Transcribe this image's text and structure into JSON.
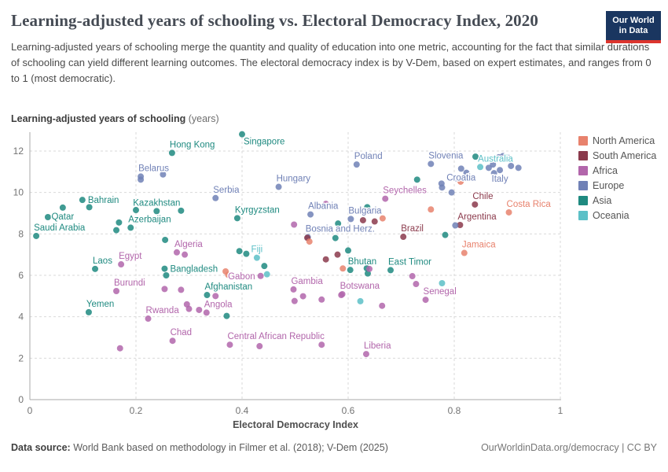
{
  "header": {
    "title": "Learning-adjusted years of schooling vs. Electoral Democracy Index, 2020",
    "subtitle": "Learning-adjusted years of schooling merge the quantity and quality of education into one metric, accounting for the fact that similar durations of schooling can yield different learning outcomes. The electoral democracy index is by V-Dem, based on expert estimates, and ranges from 0 to 1 (most democratic).",
    "logo": {
      "line1": "Our World",
      "line2": "in Data",
      "bg_color": "#1a3660",
      "bar_color": "#dc352e"
    }
  },
  "chart_data": {
    "type": "scatter",
    "title": "Learning-adjusted years of schooling vs. Electoral Democracy Index, 2020",
    "xlabel": "Electoral Democracy Index",
    "ylabel_bold": "Learning-adjusted years of schooling",
    "ylabel_unit": " (years)",
    "xlim": [
      0,
      1
    ],
    "ylim": [
      0,
      13
    ],
    "x_ticks": [
      "0",
      "0.2",
      "0.4",
      "0.6",
      "0.8",
      "1"
    ],
    "y_ticks": [
      "0",
      "2",
      "4",
      "6",
      "8",
      "10",
      "12"
    ],
    "grid": "dashed",
    "legend_position": "right",
    "legend": [
      {
        "label": "North America",
        "color": "#e8826d"
      },
      {
        "label": "South America",
        "color": "#8b3a4c"
      },
      {
        "label": "Africa",
        "color": "#b266ab"
      },
      {
        "label": "Europe",
        "color": "#7081b6"
      },
      {
        "label": "Asia",
        "color": "#1f8a80"
      },
      {
        "label": "Oceania",
        "color": "#5cc0c7"
      }
    ],
    "continent_colors": {
      "North America": "#e8826d",
      "South America": "#8b3a4c",
      "Africa": "#b266ab",
      "Europe": "#7081b6",
      "Asia": "#1f8a80",
      "Oceania": "#5cc0c7"
    },
    "points": [
      {
        "name": "Saudi Arabia",
        "x": 0.012,
        "y": 7.9,
        "continent": "Asia",
        "label_pos": "above-right"
      },
      {
        "name": "Qatar",
        "x": 0.062,
        "y": 9.27,
        "continent": "Asia",
        "label_pos": "below"
      },
      {
        "name": "Bahrain",
        "x": 0.099,
        "y": 9.64,
        "continent": "Asia",
        "label_pos": "right"
      },
      {
        "name": "Yemen",
        "x": 0.111,
        "y": 4.22,
        "continent": "Asia",
        "label_pos": "above-right"
      },
      {
        "name": "Laos",
        "x": 0.123,
        "y": 6.31,
        "continent": "Asia",
        "label_pos": "above-right"
      },
      {
        "name": "Burundi",
        "x": 0.163,
        "y": 5.24,
        "continent": "Africa",
        "label_pos": "above-right"
      },
      {
        "name": "Egypt",
        "x": 0.172,
        "y": 6.53,
        "continent": "Africa",
        "label_pos": "above-right"
      },
      {
        "name": "Azerbaijan",
        "x": 0.19,
        "y": 8.3,
        "continent": "Asia",
        "label_pos": "above-right"
      },
      {
        "name": "Belarus",
        "x": 0.209,
        "y": 10.77,
        "continent": "Europe",
        "label_pos": "above-right"
      },
      {
        "name": "Kazakhstan",
        "x": 0.239,
        "y": 9.1,
        "continent": "Asia",
        "label_pos": "above"
      },
      {
        "name": "Rwanda",
        "x": 0.223,
        "y": 3.91,
        "continent": "Africa",
        "label_pos": "above-right"
      },
      {
        "name": "Hong Kong",
        "x": 0.268,
        "y": 11.91,
        "continent": "Asia",
        "label_pos": "above-right"
      },
      {
        "name": "Chad",
        "x": 0.269,
        "y": 2.84,
        "continent": "Africa",
        "label_pos": "above-right"
      },
      {
        "name": "Bangladesh",
        "x": 0.254,
        "y": 6.32,
        "continent": "Asia",
        "label_pos": "right"
      },
      {
        "name": "Algeria",
        "x": 0.277,
        "y": 7.11,
        "continent": "Africa",
        "label_pos": "above-right"
      },
      {
        "name": "Angola",
        "x": 0.333,
        "y": 4.2,
        "continent": "Africa",
        "label_pos": "above-right"
      },
      {
        "name": "Afghanistan",
        "x": 0.334,
        "y": 5.05,
        "continent": "Asia",
        "label_pos": "above-right"
      },
      {
        "name": "Serbia",
        "x": 0.35,
        "y": 9.73,
        "continent": "Europe",
        "label_pos": "above-right"
      },
      {
        "name": "Kyrgyzstan",
        "x": 0.391,
        "y": 8.76,
        "continent": "Asia",
        "label_pos": "above-right"
      },
      {
        "name": "Singapore",
        "x": 0.4,
        "y": 12.81,
        "continent": "Asia",
        "label_pos": "below-right"
      },
      {
        "name": "Fiji",
        "x": 0.428,
        "y": 6.85,
        "continent": "Oceania",
        "label_pos": "above"
      },
      {
        "name": "Gabon",
        "x": 0.435,
        "y": 5.97,
        "continent": "Africa",
        "label_pos": "left"
      },
      {
        "name": "Central African Republic",
        "x": 0.377,
        "y": 2.65,
        "continent": "Africa",
        "label_pos": "above-right"
      },
      {
        "name": "Hungary",
        "x": 0.469,
        "y": 10.27,
        "continent": "Europe",
        "label_pos": "above-right"
      },
      {
        "name": "Gambia",
        "x": 0.497,
        "y": 5.32,
        "continent": "Africa",
        "label_pos": "above-right"
      },
      {
        "name": "Bosnia and Herz.",
        "x": 0.524,
        "y": 7.84,
        "continent": "Europe",
        "label_pos": "above-right"
      },
      {
        "name": "Albania",
        "x": 0.529,
        "y": 8.94,
        "continent": "Europe",
        "label_pos": "above-right"
      },
      {
        "name": "Botswana",
        "x": 0.589,
        "y": 5.09,
        "continent": "Africa",
        "label_pos": "above-right"
      },
      {
        "name": "Bhutan",
        "x": 0.604,
        "y": 6.26,
        "continent": "Asia",
        "label_pos": "above-right"
      },
      {
        "name": "Bulgaria",
        "x": 0.605,
        "y": 8.72,
        "continent": "Europe",
        "label_pos": "above-right"
      },
      {
        "name": "Poland",
        "x": 0.616,
        "y": 11.35,
        "continent": "Europe",
        "label_pos": "above-right"
      },
      {
        "name": "Liberia",
        "x": 0.634,
        "y": 2.2,
        "continent": "Africa",
        "label_pos": "above-right"
      },
      {
        "name": "Seychelles",
        "x": 0.67,
        "y": 9.7,
        "continent": "Africa",
        "label_pos": "above-right"
      },
      {
        "name": "East Timor",
        "x": 0.68,
        "y": 6.25,
        "continent": "Asia",
        "label_pos": "above-right"
      },
      {
        "name": "Brazil",
        "x": 0.704,
        "y": 7.86,
        "continent": "South America",
        "label_pos": "above-right"
      },
      {
        "name": "Senegal",
        "x": 0.746,
        "y": 4.82,
        "continent": "Africa",
        "label_pos": "above-right"
      },
      {
        "name": "Slovenia",
        "x": 0.756,
        "y": 11.38,
        "continent": "Europe",
        "label_pos": "above-right"
      },
      {
        "name": "Croatia",
        "x": 0.813,
        "y": 11.15,
        "continent": "Europe",
        "label_pos": "below"
      },
      {
        "name": "Argentina",
        "x": 0.811,
        "y": 8.43,
        "continent": "South America",
        "label_pos": "above-right"
      },
      {
        "name": "Jamaica",
        "x": 0.819,
        "y": 7.08,
        "continent": "North America",
        "label_pos": "above-right"
      },
      {
        "name": "Chile",
        "x": 0.839,
        "y": 9.42,
        "continent": "South America",
        "label_pos": "above-right"
      },
      {
        "name": "Australia",
        "x": 0.849,
        "y": 11.23,
        "continent": "Oceania",
        "label_pos": "above-right"
      },
      {
        "name": "Italy",
        "x": 0.886,
        "y": 11.08,
        "continent": "Europe",
        "label_pos": "below"
      },
      {
        "name": "Costa Rica",
        "x": 0.903,
        "y": 9.04,
        "continent": "North America",
        "label_pos": "above-right"
      },
      {
        "name": "",
        "x": 0.034,
        "y": 8.81,
        "continent": "Asia"
      },
      {
        "name": "",
        "x": 0.112,
        "y": 9.29,
        "continent": "Asia"
      },
      {
        "name": "",
        "x": 0.168,
        "y": 8.55,
        "continent": "Asia"
      },
      {
        "name": "",
        "x": 0.163,
        "y": 8.18,
        "continent": "Asia"
      },
      {
        "name": "",
        "x": 0.2,
        "y": 9.15,
        "continent": "Asia"
      },
      {
        "name": "",
        "x": 0.285,
        "y": 9.12,
        "continent": "Asia"
      },
      {
        "name": "",
        "x": 0.17,
        "y": 2.48,
        "continent": "Africa"
      },
      {
        "name": "",
        "x": 0.255,
        "y": 7.71,
        "continent": "Asia"
      },
      {
        "name": "",
        "x": 0.292,
        "y": 7.0,
        "continent": "Africa"
      },
      {
        "name": "",
        "x": 0.296,
        "y": 4.6,
        "continent": "Africa"
      },
      {
        "name": "",
        "x": 0.3,
        "y": 4.38,
        "continent": "Africa"
      },
      {
        "name": "",
        "x": 0.319,
        "y": 4.33,
        "continent": "Africa"
      },
      {
        "name": "",
        "x": 0.254,
        "y": 5.34,
        "continent": "Africa"
      },
      {
        "name": "",
        "x": 0.285,
        "y": 5.3,
        "continent": "Africa"
      },
      {
        "name": "",
        "x": 0.35,
        "y": 5.0,
        "continent": "Africa"
      },
      {
        "name": "",
        "x": 0.371,
        "y": 4.04,
        "continent": "Asia"
      },
      {
        "name": "",
        "x": 0.369,
        "y": 6.19,
        "continent": "North America"
      },
      {
        "name": "",
        "x": 0.374,
        "y": 6.02,
        "continent": "North America"
      },
      {
        "name": "",
        "x": 0.395,
        "y": 7.17,
        "continent": "Asia"
      },
      {
        "name": "",
        "x": 0.408,
        "y": 7.04,
        "continent": "Asia"
      },
      {
        "name": "",
        "x": 0.442,
        "y": 6.45,
        "continent": "Asia"
      },
      {
        "name": "",
        "x": 0.447,
        "y": 6.05,
        "continent": "Oceania"
      },
      {
        "name": "",
        "x": 0.257,
        "y": 6.0,
        "continent": "Asia"
      },
      {
        "name": "",
        "x": 0.251,
        "y": 10.87,
        "continent": "Europe"
      },
      {
        "name": "",
        "x": 0.209,
        "y": 10.62,
        "continent": "Europe"
      },
      {
        "name": "",
        "x": 0.433,
        "y": 2.58,
        "continent": "Africa"
      },
      {
        "name": "",
        "x": 0.55,
        "y": 2.65,
        "continent": "Africa"
      },
      {
        "name": "",
        "x": 0.498,
        "y": 8.45,
        "continent": "Africa"
      },
      {
        "name": "",
        "x": 0.499,
        "y": 4.76,
        "continent": "Africa"
      },
      {
        "name": "",
        "x": 0.515,
        "y": 4.99,
        "continent": "Africa"
      },
      {
        "name": "",
        "x": 0.55,
        "y": 4.83,
        "continent": "Africa"
      },
      {
        "name": "",
        "x": 0.523,
        "y": 7.81,
        "continent": "South America"
      },
      {
        "name": "",
        "x": 0.527,
        "y": 7.63,
        "continent": "North America"
      },
      {
        "name": "",
        "x": 0.558,
        "y": 9.45,
        "continent": "Africa"
      },
      {
        "name": "",
        "x": 0.558,
        "y": 6.77,
        "continent": "South America"
      },
      {
        "name": "",
        "x": 0.58,
        "y": 7.0,
        "continent": "South America"
      },
      {
        "name": "",
        "x": 0.576,
        "y": 7.8,
        "continent": "Asia"
      },
      {
        "name": "",
        "x": 0.581,
        "y": 8.5,
        "continent": "Asia"
      },
      {
        "name": "",
        "x": 0.587,
        "y": 5.05,
        "continent": "Africa"
      },
      {
        "name": "",
        "x": 0.59,
        "y": 6.33,
        "continent": "North America"
      },
      {
        "name": "",
        "x": 0.6,
        "y": 7.2,
        "continent": "Asia"
      },
      {
        "name": "",
        "x": 0.623,
        "y": 4.75,
        "continent": "Oceania"
      },
      {
        "name": "",
        "x": 0.628,
        "y": 8.66,
        "continent": "South America"
      },
      {
        "name": "",
        "x": 0.636,
        "y": 9.29,
        "continent": "Asia"
      },
      {
        "name": "",
        "x": 0.637,
        "y": 6.09,
        "continent": "Asia"
      },
      {
        "name": "",
        "x": 0.635,
        "y": 6.34,
        "continent": "Asia"
      },
      {
        "name": "",
        "x": 0.64,
        "y": 6.31,
        "continent": "Africa"
      },
      {
        "name": "",
        "x": 0.65,
        "y": 8.6,
        "continent": "South America"
      },
      {
        "name": "",
        "x": 0.664,
        "y": 4.53,
        "continent": "Africa"
      },
      {
        "name": "",
        "x": 0.665,
        "y": 8.75,
        "continent": "North America"
      },
      {
        "name": "",
        "x": 0.721,
        "y": 5.96,
        "continent": "Africa"
      },
      {
        "name": "",
        "x": 0.728,
        "y": 5.58,
        "continent": "Africa"
      },
      {
        "name": "",
        "x": 0.73,
        "y": 10.62,
        "continent": "Asia"
      },
      {
        "name": "",
        "x": 0.756,
        "y": 9.18,
        "continent": "North America"
      },
      {
        "name": "",
        "x": 0.777,
        "y": 5.62,
        "continent": "Oceania"
      },
      {
        "name": "",
        "x": 0.776,
        "y": 10.43,
        "continent": "Europe"
      },
      {
        "name": "",
        "x": 0.777,
        "y": 10.24,
        "continent": "Europe"
      },
      {
        "name": "",
        "x": 0.783,
        "y": 7.95,
        "continent": "Asia"
      },
      {
        "name": "",
        "x": 0.795,
        "y": 10.0,
        "continent": "Europe"
      },
      {
        "name": "",
        "x": 0.802,
        "y": 8.41,
        "continent": "Europe"
      },
      {
        "name": "",
        "x": 0.802,
        "y": 10.68,
        "continent": "Europe"
      },
      {
        "name": "",
        "x": 0.812,
        "y": 10.52,
        "continent": "North America"
      },
      {
        "name": "",
        "x": 0.823,
        "y": 10.95,
        "continent": "Europe"
      },
      {
        "name": "",
        "x": 0.84,
        "y": 11.73,
        "continent": "Asia"
      },
      {
        "name": "",
        "x": 0.865,
        "y": 11.19,
        "continent": "Europe"
      },
      {
        "name": "",
        "x": 0.873,
        "y": 11.35,
        "continent": "Europe"
      },
      {
        "name": "",
        "x": 0.875,
        "y": 10.93,
        "continent": "Europe"
      },
      {
        "name": "",
        "x": 0.884,
        "y": 11.7,
        "continent": "Europe"
      },
      {
        "name": "",
        "x": 0.892,
        "y": 11.76,
        "continent": "Europe"
      },
      {
        "name": "",
        "x": 0.9,
        "y": 11.7,
        "continent": "Europe"
      },
      {
        "name": "",
        "x": 0.907,
        "y": 11.28,
        "continent": "Europe"
      },
      {
        "name": "",
        "x": 0.921,
        "y": 11.19,
        "continent": "Europe"
      }
    ]
  },
  "footer": {
    "left_bold": "Data source:",
    "left_text": " World Bank based on methodology in Filmer et al. (2018); V-Dem (2025)",
    "right_text": "OurWorldinData.org/democracy | CC BY"
  }
}
